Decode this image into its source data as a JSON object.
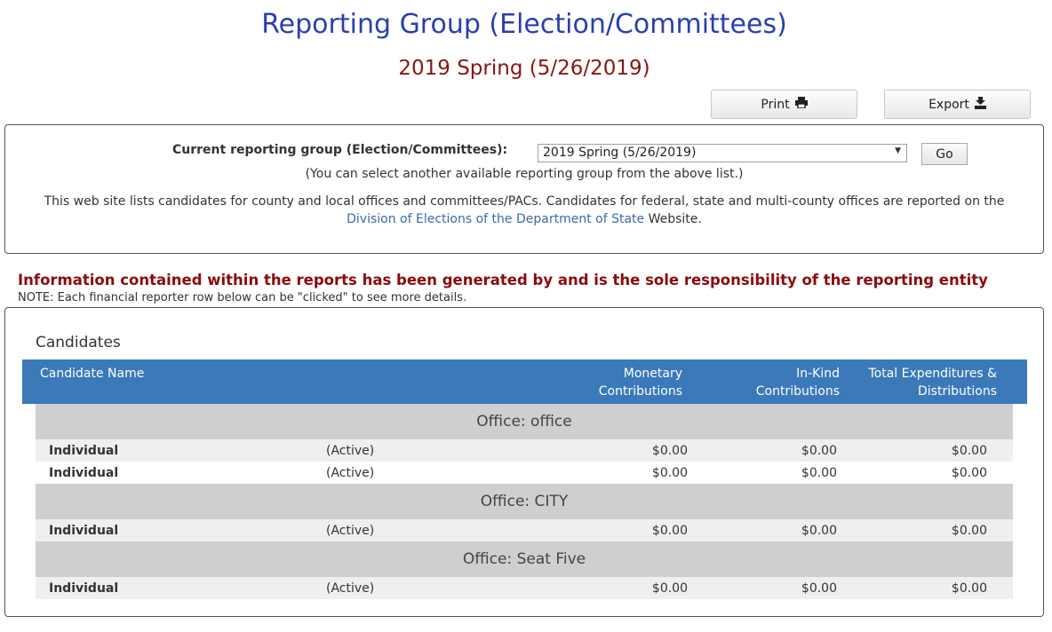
{
  "page": {
    "title": "Reporting Group (Election/Committees)",
    "subtitle": "2019 Spring (5/26/2019)"
  },
  "toolbar": {
    "print_label": "Print",
    "print_icon": "printer-icon",
    "export_label": "Export",
    "export_icon": "export-icon"
  },
  "selector": {
    "label": "Current reporting group (Election/Committees):",
    "selected": "2019 Spring (5/26/2019)",
    "go_label": "Go",
    "hint": "(You can select another available reporting group from the above list.)",
    "desc_before": "This web site lists candidates for county and local offices and committees/PACs. Candidates for federal, state and multi-county offices are reported on the",
    "desc_link": "Division of Elections of the Department of State",
    "desc_after": "Website."
  },
  "notice": {
    "warning": "Information contained within the reports has been generated by and is the sole responsibility of the reporting entity",
    "note": "NOTE: Each financial reporter row below can be \"clicked\" to see more details."
  },
  "candidates": {
    "section_title": "Candidates",
    "columns": {
      "name": "Candidate Name",
      "monetary_1": "Monetary",
      "monetary_2": "Contributions",
      "inkind_1": "In-Kind",
      "inkind_2": "Contributions",
      "total_1": "Total Expenditures &",
      "total_2": "Distributions"
    },
    "groups": [
      {
        "office": "Office: office",
        "rows": [
          {
            "name": "Individual",
            "status": "(Active)",
            "monetary": "$0.00",
            "inkind": "$0.00",
            "total": "$0.00"
          },
          {
            "name": "Individual",
            "status": "(Active)",
            "monetary": "$0.00",
            "inkind": "$0.00",
            "total": "$0.00"
          }
        ]
      },
      {
        "office": "Office: CITY",
        "rows": [
          {
            "name": "Individual",
            "status": "(Active)",
            "monetary": "$0.00",
            "inkind": "$0.00",
            "total": "$0.00"
          }
        ]
      },
      {
        "office": "Office:  Seat Five",
        "rows": [
          {
            "name": "Individual",
            "status": "(Active)",
            "monetary": "$0.00",
            "inkind": "$0.00",
            "total": "$0.00"
          }
        ]
      }
    ]
  },
  "colors": {
    "title": "#2a3fae",
    "subtitle": "#8b1414",
    "header_bg": "#3b79b9",
    "warning": "#8b0b0b",
    "link": "#3a6aa8"
  }
}
